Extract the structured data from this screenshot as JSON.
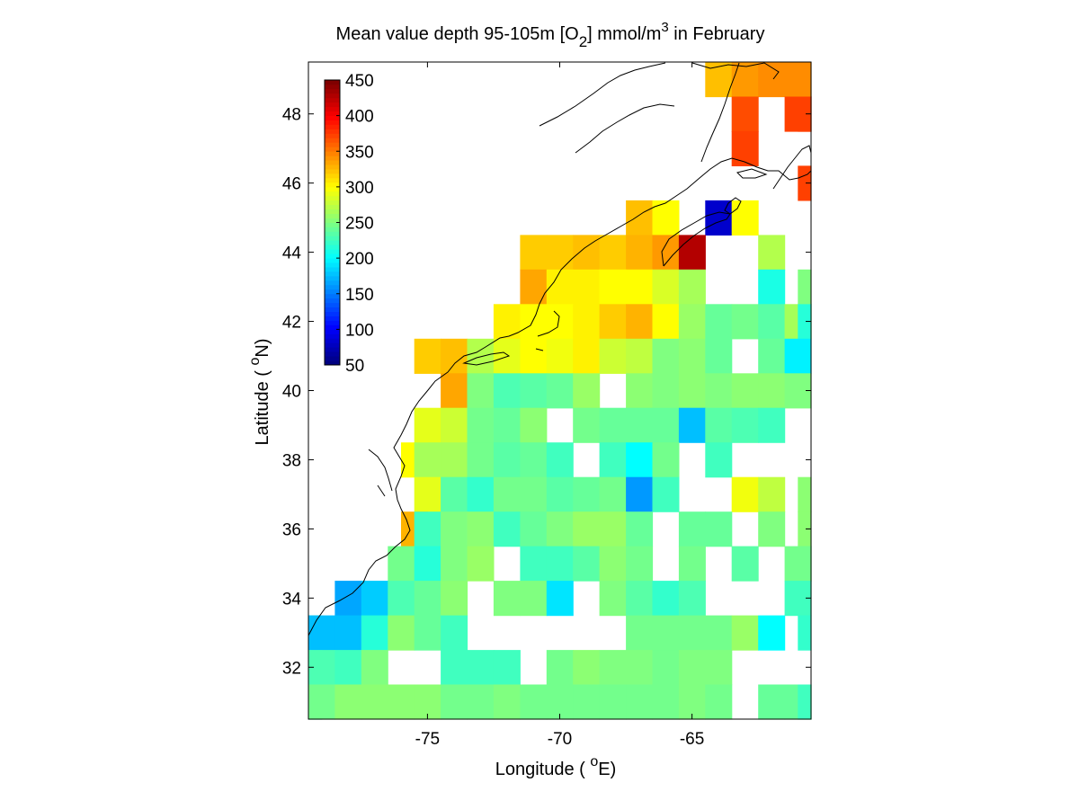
{
  "chart_data": {
    "type": "heatmap",
    "title": {
      "pre": "Mean value depth 95-105m [O",
      "sub": "2",
      "mid": "] mmol/m",
      "sup": "3",
      "post": " in February"
    },
    "xlabel": {
      "pre": "Longitude ( ",
      "sup": "o",
      "post": "E)"
    },
    "ylabel": {
      "pre": "Latitude ( ",
      "sup": "o",
      "post": "N)"
    },
    "xlim": [
      -79.5,
      -60.5
    ],
    "ylim": [
      30.5,
      49.5
    ],
    "xticks": [
      -75,
      -70,
      -65
    ],
    "xtick_labels": [
      "-75",
      "-70",
      "-65"
    ],
    "yticks": [
      32,
      34,
      36,
      38,
      40,
      42,
      44,
      46,
      48
    ],
    "ytick_labels": [
      "32",
      "34",
      "36",
      "38",
      "40",
      "42",
      "44",
      "46",
      "48"
    ],
    "colorbar": {
      "range": [
        50,
        450
      ],
      "ticks": [
        50,
        100,
        150,
        200,
        250,
        300,
        350,
        400,
        450
      ],
      "tick_labels": [
        "50",
        "100",
        "150",
        "200",
        "250",
        "300",
        "350",
        "400",
        "450"
      ],
      "colormap": "jet",
      "placement": "top-left inside"
    },
    "cell_size_deg": 1,
    "cells": [
      {
        "lat": 49,
        "vals": [
          [
            -64,
            325
          ],
          [
            -63,
            340
          ],
          [
            -62,
            345
          ],
          [
            -61,
            345
          ]
        ]
      },
      {
        "lat": 48,
        "vals": [
          [
            -63,
            370
          ],
          [
            -61,
            375
          ],
          [
            -60.5,
            375
          ]
        ]
      },
      {
        "lat": 47,
        "vals": [
          [
            -63,
            375
          ]
        ]
      },
      {
        "lat": 46,
        "vals": [
          [
            -60.5,
            375
          ]
        ]
      },
      {
        "lat": 45,
        "vals": [
          [
            -67,
            325
          ],
          [
            -66,
            300
          ],
          [
            -64,
            80
          ],
          [
            -63,
            300
          ]
        ]
      },
      {
        "lat": 44,
        "vals": [
          [
            -71,
            320
          ],
          [
            -70,
            320
          ],
          [
            -69,
            325
          ],
          [
            -68,
            320
          ],
          [
            -67,
            330
          ],
          [
            -66,
            340
          ],
          [
            -65,
            430
          ],
          [
            -62,
            270
          ]
        ]
      },
      {
        "lat": 43,
        "vals": [
          [
            -71,
            335
          ],
          [
            -70,
            305
          ],
          [
            -69,
            305
          ],
          [
            -68,
            300
          ],
          [
            -67,
            300
          ],
          [
            -66,
            285
          ],
          [
            -65,
            265
          ],
          [
            -62,
            210
          ],
          [
            -60.5,
            250
          ]
        ]
      },
      {
        "lat": 42,
        "vals": [
          [
            -72,
            305
          ],
          [
            -71,
            300
          ],
          [
            -70,
            300
          ],
          [
            -69,
            305
          ],
          [
            -68,
            320
          ],
          [
            -67,
            330
          ],
          [
            -66,
            300
          ],
          [
            -65,
            260
          ],
          [
            -64,
            240
          ],
          [
            -63,
            245
          ],
          [
            -62,
            235
          ],
          [
            -61,
            265
          ],
          [
            -60.5,
            215
          ]
        ]
      },
      {
        "lat": 41,
        "vals": [
          [
            -75,
            320
          ],
          [
            -74,
            325
          ],
          [
            -73,
            270
          ],
          [
            -72,
            290
          ],
          [
            -71,
            300
          ],
          [
            -70,
            295
          ],
          [
            -69,
            305
          ],
          [
            -68,
            280
          ],
          [
            -67,
            275
          ],
          [
            -66,
            250
          ],
          [
            -65,
            255
          ],
          [
            -64,
            240
          ],
          [
            -62,
            240
          ],
          [
            -61,
            195
          ]
        ]
      },
      {
        "lat": 40,
        "vals": [
          [
            -74,
            335
          ],
          [
            -73,
            250
          ],
          [
            -72,
            230
          ],
          [
            -71,
            235
          ],
          [
            -70,
            240
          ],
          [
            -69,
            260
          ],
          [
            -67,
            255
          ],
          [
            -66,
            250
          ],
          [
            -65,
            255
          ],
          [
            -64,
            250
          ],
          [
            -63,
            255
          ],
          [
            -62,
            255
          ],
          [
            -61,
            250
          ]
        ]
      },
      {
        "lat": 39,
        "vals": [
          [
            -75,
            290
          ],
          [
            -74,
            280
          ],
          [
            -73,
            245
          ],
          [
            -72,
            240
          ],
          [
            -71,
            255
          ],
          [
            -69,
            245
          ],
          [
            -68,
            240
          ],
          [
            -67,
            240
          ],
          [
            -66,
            240
          ],
          [
            -65,
            175
          ],
          [
            -64,
            235
          ],
          [
            -63,
            230
          ],
          [
            -62,
            225
          ]
        ]
      },
      {
        "lat": 38,
        "vals": [
          [
            -75.5,
            300
          ],
          [
            -75,
            265
          ],
          [
            -74,
            265
          ],
          [
            -73,
            245
          ],
          [
            -72,
            235
          ],
          [
            -71,
            240
          ],
          [
            -70,
            225
          ],
          [
            -68,
            225
          ],
          [
            -67,
            200
          ],
          [
            -66,
            245
          ],
          [
            -64,
            225
          ]
        ]
      },
      {
        "lat": 37,
        "vals": [
          [
            -75,
            290
          ],
          [
            -74,
            235
          ],
          [
            -73,
            220
          ],
          [
            -72,
            245
          ],
          [
            -71,
            245
          ],
          [
            -70,
            235
          ],
          [
            -69,
            240
          ],
          [
            -68,
            245
          ],
          [
            -67,
            160
          ],
          [
            -66,
            225
          ],
          [
            -63,
            295
          ],
          [
            -62,
            275
          ],
          [
            -60.5,
            255
          ]
        ]
      },
      {
        "lat": 36,
        "vals": [
          [
            -75.5,
            330
          ],
          [
            -75,
            225
          ],
          [
            -74,
            250
          ],
          [
            -73,
            255
          ],
          [
            -72,
            225
          ],
          [
            -71,
            240
          ],
          [
            -70,
            250
          ],
          [
            -69,
            260
          ],
          [
            -68,
            260
          ],
          [
            -67,
            240
          ],
          [
            -65,
            240
          ],
          [
            -64,
            240
          ],
          [
            -62,
            250
          ],
          [
            -60.5,
            255
          ]
        ]
      },
      {
        "lat": 35,
        "vals": [
          [
            -76,
            245
          ],
          [
            -75,
            215
          ],
          [
            -74,
            250
          ],
          [
            -73,
            260
          ],
          [
            -71,
            225
          ],
          [
            -70,
            225
          ],
          [
            -69,
            235
          ],
          [
            -68,
            255
          ],
          [
            -67,
            245
          ],
          [
            -65,
            245
          ],
          [
            -63,
            235
          ],
          [
            -61,
            245
          ],
          [
            -60.5,
            245
          ]
        ]
      },
      {
        "lat": 34,
        "vals": [
          [
            -78,
            165
          ],
          [
            -77,
            180
          ],
          [
            -76,
            230
          ],
          [
            -75,
            240
          ],
          [
            -74,
            255
          ],
          [
            -72,
            250
          ],
          [
            -71,
            250
          ],
          [
            -70,
            190
          ],
          [
            -68,
            250
          ],
          [
            -67,
            235
          ],
          [
            -66,
            220
          ],
          [
            -65,
            230
          ],
          [
            -61,
            225
          ]
        ]
      },
      {
        "lat": 33,
        "vals": [
          [
            -79.5,
            240
          ],
          [
            -79,
            175
          ],
          [
            -78,
            175
          ],
          [
            -77,
            215
          ],
          [
            -76,
            255
          ],
          [
            -75,
            240
          ],
          [
            -74,
            225
          ],
          [
            -67,
            245
          ],
          [
            -66,
            245
          ],
          [
            -65,
            245
          ],
          [
            -64,
            245
          ],
          [
            -63,
            260
          ],
          [
            -62,
            200
          ],
          [
            -60.5,
            220
          ]
        ]
      },
      {
        "lat": 32,
        "vals": [
          [
            -79.5,
            185
          ],
          [
            -79,
            230
          ],
          [
            -78,
            225
          ],
          [
            -77,
            250
          ],
          [
            -74,
            225
          ],
          [
            -73,
            225
          ],
          [
            -72,
            225
          ],
          [
            -70,
            245
          ],
          [
            -69,
            255
          ],
          [
            -68,
            250
          ],
          [
            -67,
            250
          ],
          [
            -66,
            245
          ],
          [
            -65,
            250
          ],
          [
            -64,
            250
          ]
        ]
      },
      {
        "lat": 31,
        "vals": [
          [
            -79.5,
            220
          ],
          [
            -79,
            245
          ],
          [
            -78,
            255
          ],
          [
            -77,
            255
          ],
          [
            -76,
            255
          ],
          [
            -75,
            255
          ],
          [
            -74,
            245
          ],
          [
            -73,
            245
          ],
          [
            -72,
            250
          ],
          [
            -71,
            245
          ],
          [
            -70,
            245
          ],
          [
            -69,
            245
          ],
          [
            -68,
            245
          ],
          [
            -67,
            245
          ],
          [
            -66,
            245
          ],
          [
            -65,
            250
          ],
          [
            -64,
            245
          ],
          [
            -62,
            240
          ],
          [
            -61,
            240
          ],
          [
            -60.5,
            225
          ]
        ]
      }
    ]
  }
}
